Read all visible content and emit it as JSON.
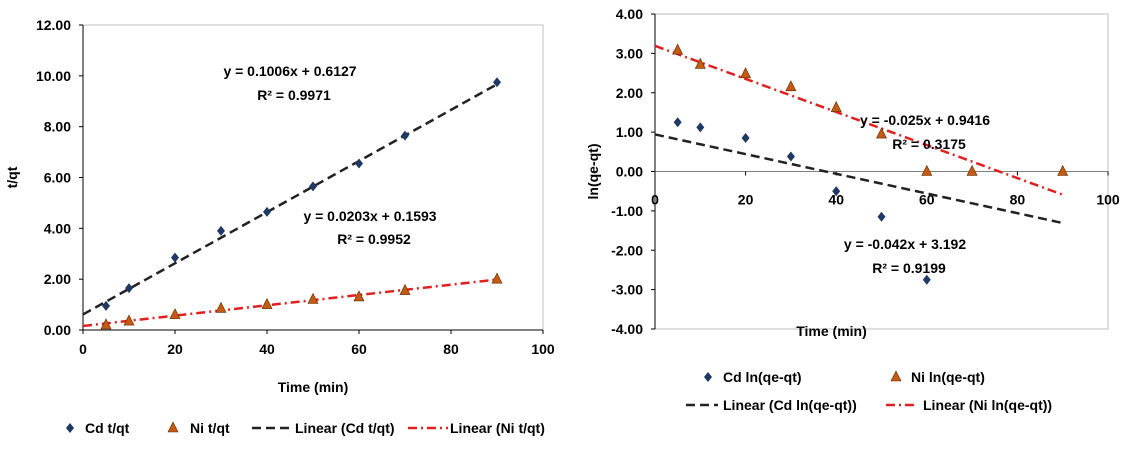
{
  "chart_data": [
    {
      "type": "scatter",
      "title": "",
      "xlabel": "Time (min)",
      "ylabel": "t/qt",
      "xlim": [
        0,
        100
      ],
      "ylim": [
        0,
        12
      ],
      "xticks": [
        "0",
        "20",
        "40",
        "60",
        "80",
        "100"
      ],
      "yticks": [
        "0.00",
        "2.00",
        "4.00",
        "6.00",
        "8.00",
        "10.00",
        "12.00"
      ],
      "grid": false,
      "legend_position": "bottom",
      "series": [
        {
          "name": "Cd  t/qt",
          "marker": "diamond",
          "color": "#1f3864",
          "x": [
            5,
            10,
            20,
            30,
            40,
            50,
            60,
            70,
            90
          ],
          "y": [
            0.95,
            1.65,
            2.85,
            3.9,
            4.65,
            5.65,
            6.55,
            7.65,
            9.75
          ]
        },
        {
          "name": "Ni t/qt",
          "marker": "triangle",
          "color": "#c55a11",
          "x": [
            5,
            10,
            20,
            30,
            40,
            50,
            60,
            70,
            90
          ],
          "y": [
            0.2,
            0.35,
            0.6,
            0.85,
            1.0,
            1.2,
            1.3,
            1.55,
            2.0
          ]
        }
      ],
      "trendlines": [
        {
          "name": "Linear (Cd  t/qt)",
          "slope": 0.1006,
          "intercept": 0.6127,
          "x_range": [
            0,
            90
          ],
          "color": "#222222",
          "dash": "dash",
          "equation": "y = 0.1006x + 0.6127",
          "r2": "R² = 0.9971"
        },
        {
          "name": "Linear (Ni t/qt)",
          "slope": 0.0203,
          "intercept": 0.1593,
          "x_range": [
            0,
            90
          ],
          "color": "#e02020",
          "dash": "dashdot",
          "equation": "y = 0.0203x + 0.1593",
          "r2": "R² = 0.9952"
        }
      ]
    },
    {
      "type": "scatter",
      "title": "",
      "xlabel": "Time (min)",
      "ylabel": "ln(qe-qt)",
      "xlim": [
        0,
        100
      ],
      "ylim": [
        -4,
        4
      ],
      "xticks": [
        "0",
        "20",
        "40",
        "60",
        "80",
        "100"
      ],
      "yticks": [
        "-4.00",
        "-3.00",
        "-2.00",
        "-1.00",
        "0.00",
        "1.00",
        "2.00",
        "3.00",
        "4.00"
      ],
      "grid": false,
      "legend_position": "bottom",
      "series": [
        {
          "name": "Cd ln(qe-qt)",
          "marker": "diamond",
          "color": "#1f3864",
          "x": [
            5,
            10,
            20,
            30,
            40,
            50,
            60
          ],
          "y": [
            1.25,
            1.12,
            0.85,
            0.38,
            -0.5,
            -1.15,
            -2.75
          ]
        },
        {
          "name": "Ni ln(qe-qt)",
          "marker": "triangle",
          "color": "#c55a11",
          "x": [
            5,
            10,
            20,
            30,
            40,
            50,
            60,
            70,
            90
          ],
          "y": [
            3.08,
            2.72,
            2.48,
            2.15,
            1.62,
            0.95,
            0.0,
            0.0,
            0.0
          ]
        }
      ],
      "trendlines": [
        {
          "name": "Linear (Cd ln(qe-qt))",
          "slope": -0.025,
          "intercept": 0.9416,
          "x_range": [
            0,
            90
          ],
          "color": "#222222",
          "dash": "dash",
          "equation": "y = -0.025x + 0.9416",
          "r2": "R² = 0.3175"
        },
        {
          "name": "Linear (Ni ln(qe-qt))",
          "slope": -0.042,
          "intercept": 3.192,
          "x_range": [
            0,
            90
          ],
          "color": "#e02020",
          "dash": "dashdot",
          "equation": "y = -0.042x + 3.192",
          "r2": "R² = 0.9199"
        }
      ]
    }
  ]
}
